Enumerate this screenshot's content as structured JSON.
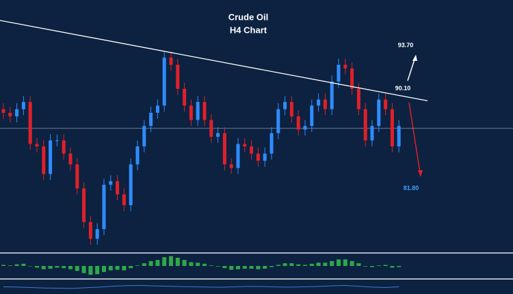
{
  "chart_data": {
    "type": "candlestick",
    "title": "Crude Oil",
    "subtitle": "H4 Chart",
    "ylim": [
      76.7,
      97.5
    ],
    "up_color": "#2f8cff",
    "down_color": "#e0202a",
    "open": [
      88.4,
      88.1,
      87.8,
      88.4,
      89.0,
      85.5,
      85.3,
      83.0,
      85.8,
      85.8,
      84.7,
      83.8,
      81.8,
      79.0,
      77.6,
      78.4,
      82.1,
      82.4,
      81.3,
      80.4,
      83.8,
      85.3,
      87.0,
      88.1,
      88.7,
      92.7,
      92.1,
      90.1,
      88.7,
      87.5,
      89.0,
      87.5,
      86.1,
      86.4,
      83.8,
      83.5,
      85.5,
      85.3,
      84.7,
      84.1,
      84.7,
      86.4,
      88.4,
      89.0,
      87.8,
      86.7,
      87.0,
      88.7,
      89.2,
      88.4,
      90.7,
      92.1,
      91.8,
      90.1,
      88.4,
      85.8,
      87.0,
      89.2,
      88.4,
      85.3
    ],
    "high": [
      88.9,
      88.6,
      88.9,
      89.5,
      89.5,
      86.0,
      85.8,
      86.3,
      86.3,
      86.3,
      85.2,
      84.3,
      82.3,
      79.5,
      78.9,
      82.6,
      82.9,
      82.9,
      81.8,
      84.3,
      85.8,
      87.5,
      88.6,
      89.2,
      93.2,
      93.2,
      92.6,
      90.6,
      89.2,
      89.5,
      89.5,
      88.0,
      86.9,
      86.9,
      84.3,
      86.0,
      86.0,
      85.8,
      85.2,
      85.2,
      86.9,
      88.9,
      89.5,
      89.5,
      88.3,
      87.5,
      89.2,
      89.7,
      89.7,
      91.2,
      92.6,
      92.6,
      92.3,
      90.6,
      88.9,
      87.5,
      89.7,
      89.7,
      88.9,
      87.5
    ],
    "low": [
      87.6,
      87.3,
      87.3,
      87.9,
      85.0,
      84.8,
      82.5,
      82.5,
      85.3,
      84.2,
      83.3,
      81.3,
      78.5,
      77.1,
      77.1,
      77.9,
      81.6,
      80.8,
      79.9,
      79.9,
      83.3,
      84.8,
      86.5,
      87.6,
      88.2,
      91.6,
      89.6,
      88.2,
      87.0,
      87.0,
      87.0,
      85.6,
      85.6,
      83.3,
      83.0,
      83.0,
      84.8,
      84.2,
      83.6,
      83.6,
      84.2,
      85.9,
      87.9,
      87.3,
      86.2,
      86.2,
      86.5,
      88.2,
      87.9,
      87.9,
      90.2,
      91.3,
      89.6,
      87.9,
      85.3,
      85.3,
      86.5,
      87.9,
      84.8,
      84.8
    ],
    "close": [
      88.1,
      87.8,
      88.4,
      89.0,
      85.5,
      85.3,
      83.0,
      85.8,
      85.8,
      84.7,
      83.8,
      81.8,
      79.0,
      77.6,
      78.4,
      82.1,
      82.4,
      81.3,
      80.4,
      83.8,
      85.3,
      87.0,
      88.1,
      88.7,
      92.7,
      92.1,
      90.1,
      88.7,
      87.5,
      89.0,
      87.5,
      86.1,
      86.4,
      83.8,
      83.5,
      85.5,
      85.3,
      84.7,
      84.1,
      84.7,
      86.4,
      88.4,
      89.0,
      87.8,
      86.7,
      87.0,
      88.7,
      89.2,
      88.4,
      90.7,
      92.1,
      91.8,
      90.1,
      88.4,
      85.8,
      87.0,
      89.2,
      88.4,
      85.3,
      87.0
    ],
    "current_price": 86.8,
    "trendline": [
      95.8,
      89.1
    ],
    "levels": [
      {
        "value": 93.7,
        "label": "93.70",
        "color": "#ffffff"
      },
      {
        "value": 90.1,
        "label": "90.10",
        "color": "#ffffff"
      },
      {
        "value": 81.8,
        "label": "81.80",
        "color": "#3fa0ff"
      }
    ],
    "macd": {
      "ylim": [
        -2,
        2
      ],
      "color": "#2ea84a",
      "values": [
        0.2,
        0.1,
        0.3,
        0.4,
        0.0,
        -0.3,
        -0.6,
        -0.5,
        -0.3,
        -0.4,
        -0.6,
        -0.9,
        -1.3,
        -1.6,
        -1.5,
        -1.1,
        -0.8,
        -0.7,
        -0.8,
        -0.4,
        0.1,
        0.5,
        0.9,
        1.1,
        1.6,
        1.8,
        1.5,
        1.1,
        0.7,
        0.6,
        0.4,
        0.1,
        -0.1,
        -0.4,
        -0.7,
        -0.6,
        -0.5,
        -0.5,
        -0.6,
        -0.5,
        -0.2,
        0.2,
        0.5,
        0.5,
        0.3,
        0.2,
        0.4,
        0.6,
        0.6,
        0.9,
        1.2,
        1.2,
        0.9,
        0.5,
        -0.1,
        -0.2,
        0.1,
        0.2,
        -0.3,
        -0.2
      ]
    },
    "oscillator": {
      "ylim": [
        0,
        100
      ],
      "color": "#3a7bd5",
      "values": [
        50,
        48,
        44,
        40,
        38,
        36,
        42,
        47,
        55,
        60,
        62,
        58,
        55,
        52,
        50,
        48,
        46,
        50,
        54,
        52,
        49,
        47,
        50,
        53,
        58,
        62,
        55,
        48,
        44,
        50
      ]
    }
  }
}
